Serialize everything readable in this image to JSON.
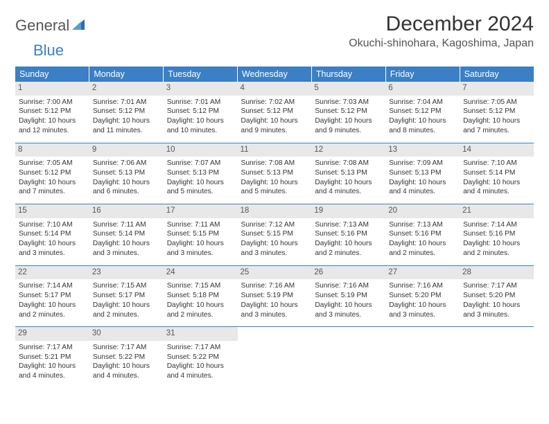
{
  "logo": {
    "part1": "General",
    "part2": "Blue"
  },
  "title": "December 2024",
  "location": "Okuchi-shinohara, Kagoshima, Japan",
  "colors": {
    "header_bg": "#3b7fc4",
    "header_text": "#ffffff",
    "daynum_bg": "#e8e8e8",
    "border": "#3b7fc4",
    "text": "#333333"
  },
  "weekdays": [
    "Sunday",
    "Monday",
    "Tuesday",
    "Wednesday",
    "Thursday",
    "Friday",
    "Saturday"
  ],
  "days": [
    {
      "n": "1",
      "sr": "7:00 AM",
      "ss": "5:12 PM",
      "d1": "10 hours",
      "d2": "and 12 minutes."
    },
    {
      "n": "2",
      "sr": "7:01 AM",
      "ss": "5:12 PM",
      "d1": "10 hours",
      "d2": "and 11 minutes."
    },
    {
      "n": "3",
      "sr": "7:01 AM",
      "ss": "5:12 PM",
      "d1": "10 hours",
      "d2": "and 10 minutes."
    },
    {
      "n": "4",
      "sr": "7:02 AM",
      "ss": "5:12 PM",
      "d1": "10 hours",
      "d2": "and 9 minutes."
    },
    {
      "n": "5",
      "sr": "7:03 AM",
      "ss": "5:12 PM",
      "d1": "10 hours",
      "d2": "and 9 minutes."
    },
    {
      "n": "6",
      "sr": "7:04 AM",
      "ss": "5:12 PM",
      "d1": "10 hours",
      "d2": "and 8 minutes."
    },
    {
      "n": "7",
      "sr": "7:05 AM",
      "ss": "5:12 PM",
      "d1": "10 hours",
      "d2": "and 7 minutes."
    },
    {
      "n": "8",
      "sr": "7:05 AM",
      "ss": "5:12 PM",
      "d1": "10 hours",
      "d2": "and 7 minutes."
    },
    {
      "n": "9",
      "sr": "7:06 AM",
      "ss": "5:13 PM",
      "d1": "10 hours",
      "d2": "and 6 minutes."
    },
    {
      "n": "10",
      "sr": "7:07 AM",
      "ss": "5:13 PM",
      "d1": "10 hours",
      "d2": "and 5 minutes."
    },
    {
      "n": "11",
      "sr": "7:08 AM",
      "ss": "5:13 PM",
      "d1": "10 hours",
      "d2": "and 5 minutes."
    },
    {
      "n": "12",
      "sr": "7:08 AM",
      "ss": "5:13 PM",
      "d1": "10 hours",
      "d2": "and 4 minutes."
    },
    {
      "n": "13",
      "sr": "7:09 AM",
      "ss": "5:13 PM",
      "d1": "10 hours",
      "d2": "and 4 minutes."
    },
    {
      "n": "14",
      "sr": "7:10 AM",
      "ss": "5:14 PM",
      "d1": "10 hours",
      "d2": "and 4 minutes."
    },
    {
      "n": "15",
      "sr": "7:10 AM",
      "ss": "5:14 PM",
      "d1": "10 hours",
      "d2": "and 3 minutes."
    },
    {
      "n": "16",
      "sr": "7:11 AM",
      "ss": "5:14 PM",
      "d1": "10 hours",
      "d2": "and 3 minutes."
    },
    {
      "n": "17",
      "sr": "7:11 AM",
      "ss": "5:15 PM",
      "d1": "10 hours",
      "d2": "and 3 minutes."
    },
    {
      "n": "18",
      "sr": "7:12 AM",
      "ss": "5:15 PM",
      "d1": "10 hours",
      "d2": "and 3 minutes."
    },
    {
      "n": "19",
      "sr": "7:13 AM",
      "ss": "5:16 PM",
      "d1": "10 hours",
      "d2": "and 2 minutes."
    },
    {
      "n": "20",
      "sr": "7:13 AM",
      "ss": "5:16 PM",
      "d1": "10 hours",
      "d2": "and 2 minutes."
    },
    {
      "n": "21",
      "sr": "7:14 AM",
      "ss": "5:16 PM",
      "d1": "10 hours",
      "d2": "and 2 minutes."
    },
    {
      "n": "22",
      "sr": "7:14 AM",
      "ss": "5:17 PM",
      "d1": "10 hours",
      "d2": "and 2 minutes."
    },
    {
      "n": "23",
      "sr": "7:15 AM",
      "ss": "5:17 PM",
      "d1": "10 hours",
      "d2": "and 2 minutes."
    },
    {
      "n": "24",
      "sr": "7:15 AM",
      "ss": "5:18 PM",
      "d1": "10 hours",
      "d2": "and 2 minutes."
    },
    {
      "n": "25",
      "sr": "7:16 AM",
      "ss": "5:19 PM",
      "d1": "10 hours",
      "d2": "and 3 minutes."
    },
    {
      "n": "26",
      "sr": "7:16 AM",
      "ss": "5:19 PM",
      "d1": "10 hours",
      "d2": "and 3 minutes."
    },
    {
      "n": "27",
      "sr": "7:16 AM",
      "ss": "5:20 PM",
      "d1": "10 hours",
      "d2": "and 3 minutes."
    },
    {
      "n": "28",
      "sr": "7:17 AM",
      "ss": "5:20 PM",
      "d1": "10 hours",
      "d2": "and 3 minutes."
    },
    {
      "n": "29",
      "sr": "7:17 AM",
      "ss": "5:21 PM",
      "d1": "10 hours",
      "d2": "and 4 minutes."
    },
    {
      "n": "30",
      "sr": "7:17 AM",
      "ss": "5:22 PM",
      "d1": "10 hours",
      "d2": "and 4 minutes."
    },
    {
      "n": "31",
      "sr": "7:17 AM",
      "ss": "5:22 PM",
      "d1": "10 hours",
      "d2": "and 4 minutes."
    }
  ],
  "labels": {
    "sunrise": "Sunrise:",
    "sunset": "Sunset:",
    "daylight": "Daylight:"
  }
}
